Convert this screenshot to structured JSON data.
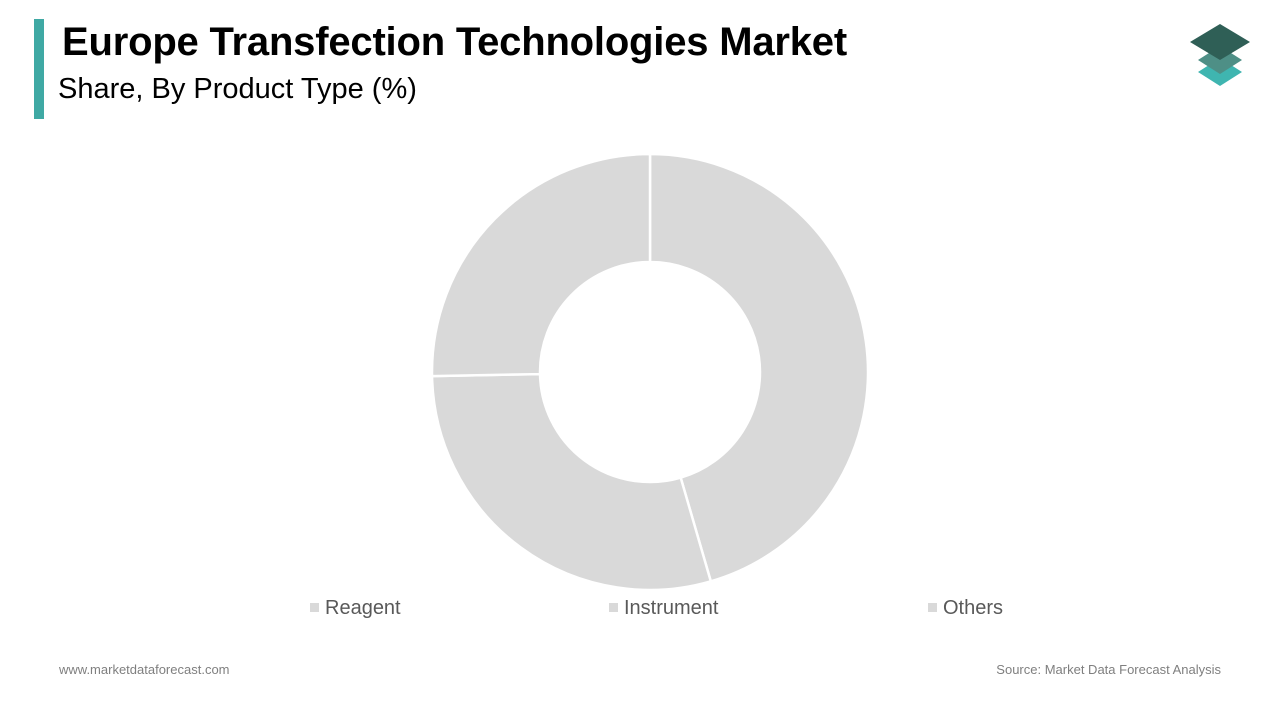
{
  "header": {
    "title": "Europe Transfection Technologies Market",
    "subtitle": "Share, By Product Type (%)"
  },
  "colors": {
    "accent": "#3fa9a4",
    "slice": "#d9d9d9",
    "legend_text": "#595959",
    "logo_dark": "#2f5f56",
    "logo_mid": "#4e8f86",
    "logo_light": "#3fb5b0"
  },
  "logo": {
    "icon": "stacked-layers-icon"
  },
  "chart_data": {
    "type": "pie",
    "donut": true,
    "categories": [
      "Reagent",
      "Instrument",
      "Others"
    ],
    "values": [
      45.5,
      29.2,
      25.3
    ],
    "start": "top",
    "direction": "clockwise",
    "legend_position": "bottom"
  },
  "footer": {
    "website": "www.marketdataforecast.com",
    "source": "Source: Market Data Forecast Analysis"
  }
}
